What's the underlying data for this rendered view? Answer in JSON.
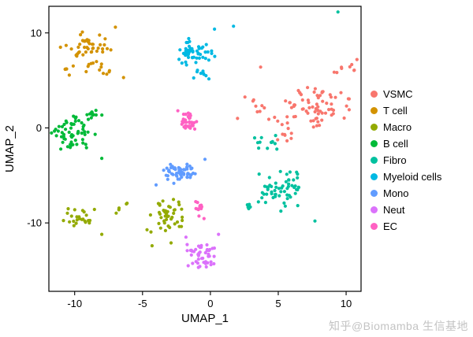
{
  "watermark": {
    "text": "知乎@Biomamba 生信基地"
  },
  "chart_data": {
    "type": "scatter",
    "title": "",
    "xlabel": "UMAP_1",
    "ylabel": "UMAP_2",
    "xlim": [
      -11.9,
      11.1
    ],
    "ylim": [
      -17.2,
      12.8
    ],
    "x_ticks": [
      -10,
      -5,
      0,
      5,
      10
    ],
    "y_ticks": [
      -10,
      0,
      10
    ],
    "grid": false,
    "legend_position": "right",
    "point_radius_px": 2.1,
    "series": [
      {
        "name": "VSMC",
        "color": "#F8766D",
        "blobs": [
          {
            "cx": 7.8,
            "cy": 2.3,
            "rx": 2.2,
            "ry": 2.3,
            "n": 68
          },
          {
            "cx": 5.4,
            "cy": 0.0,
            "rx": 1.1,
            "ry": 1.3,
            "n": 12
          },
          {
            "cx": 9.9,
            "cy": 6.0,
            "rx": 1.2,
            "ry": 0.9,
            "n": 8
          },
          {
            "cx": 3.1,
            "cy": 2.4,
            "rx": 1.0,
            "ry": 1.2,
            "n": 8
          }
        ],
        "extra": [
          [
            3.7,
            6.4
          ],
          [
            10.8,
            7.2
          ],
          [
            2.0,
            1.0
          ]
        ]
      },
      {
        "name": "T cell",
        "color": "#D39200",
        "blobs": [
          {
            "cx": -9.2,
            "cy": 8.8,
            "rx": 1.6,
            "ry": 1.3,
            "n": 42
          },
          {
            "cx": -8.2,
            "cy": 6.5,
            "rx": 1.2,
            "ry": 0.8,
            "n": 13
          },
          {
            "cx": -10.6,
            "cy": 6.2,
            "rx": 0.7,
            "ry": 0.6,
            "n": 6
          }
        ],
        "extra": [
          [
            -6.4,
            5.3
          ],
          [
            -7.0,
            10.6
          ]
        ]
      },
      {
        "name": "Macro",
        "color": "#93AA00",
        "blobs": [
          {
            "cx": -9.7,
            "cy": -9.5,
            "rx": 1.1,
            "ry": 1.0,
            "n": 24
          },
          {
            "cx": -3.2,
            "cy": -9.3,
            "rx": 1.4,
            "ry": 1.6,
            "n": 44
          },
          {
            "cx": -6.7,
            "cy": -8.4,
            "rx": 0.7,
            "ry": 0.5,
            "n": 5
          }
        ],
        "extra": [
          [
            -4.3,
            -12.4
          ],
          [
            -2.9,
            -12.1
          ],
          [
            -8.0,
            -11.2
          ]
        ]
      },
      {
        "name": "B cell",
        "color": "#00BA38",
        "blobs": [
          {
            "cx": -10.2,
            "cy": -0.6,
            "rx": 1.4,
            "ry": 1.7,
            "n": 60
          },
          {
            "cx": -8.7,
            "cy": 1.4,
            "rx": 0.8,
            "ry": 0.7,
            "n": 12
          }
        ],
        "extra": [
          [
            -8.0,
            -3.2
          ],
          [
            -12.0,
            1.6
          ]
        ]
      },
      {
        "name": "Fibro",
        "color": "#00C19F",
        "blobs": [
          {
            "cx": 5.2,
            "cy": -6.4,
            "rx": 1.7,
            "ry": 1.9,
            "n": 58
          },
          {
            "cx": 4.4,
            "cy": -1.7,
            "rx": 1.0,
            "ry": 0.8,
            "n": 12
          },
          {
            "cx": 2.8,
            "cy": -8.2,
            "rx": 0.6,
            "ry": 0.5,
            "n": 5
          }
        ],
        "extra": [
          [
            9.4,
            12.2
          ],
          [
            7.7,
            -9.8
          ]
        ]
      },
      {
        "name": "Myeloid cells",
        "color": "#00B9E3",
        "blobs": [
          {
            "cx": -1.1,
            "cy": 7.9,
            "rx": 1.2,
            "ry": 1.4,
            "n": 50
          },
          {
            "cx": -0.4,
            "cy": 5.7,
            "rx": 0.8,
            "ry": 0.5,
            "n": 9
          }
        ],
        "extra": [
          [
            1.7,
            10.7
          ],
          [
            0.3,
            10.4
          ]
        ]
      },
      {
        "name": "Mono",
        "color": "#619CFF",
        "blobs": [
          {
            "cx": -2.2,
            "cy": -4.7,
            "rx": 1.3,
            "ry": 1.0,
            "n": 52
          }
        ],
        "extra": [
          [
            -0.4,
            -3.3
          ],
          [
            -4.0,
            -6.0
          ]
        ]
      },
      {
        "name": "Neut",
        "color": "#DB72FB",
        "blobs": [
          {
            "cx": -0.7,
            "cy": -13.3,
            "rx": 1.0,
            "ry": 1.3,
            "n": 46
          }
        ],
        "extra": [
          [
            0.6,
            -11.2
          ],
          [
            -1.8,
            -11.5
          ]
        ]
      },
      {
        "name": "EC",
        "color": "#FF61C3",
        "blobs": [
          {
            "cx": -1.6,
            "cy": 0.6,
            "rx": 0.55,
            "ry": 0.95,
            "n": 40
          },
          {
            "cx": -0.8,
            "cy": -8.8,
            "rx": 0.35,
            "ry": 1.3,
            "n": 13
          }
        ],
        "extra": [
          [
            -2.4,
            1.8
          ]
        ]
      }
    ]
  }
}
